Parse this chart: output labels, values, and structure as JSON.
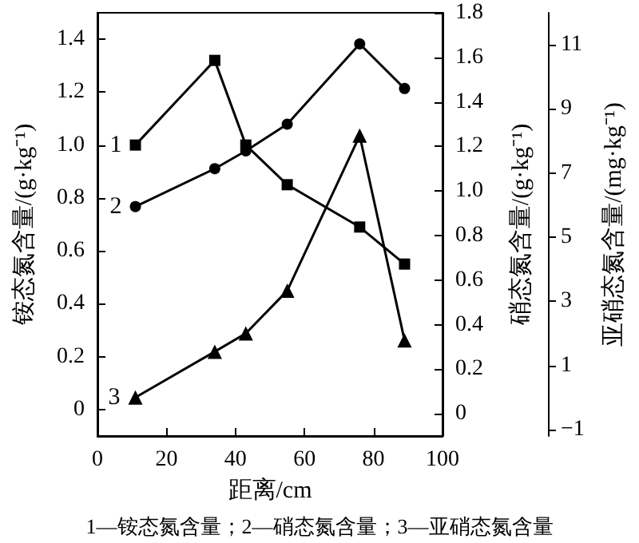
{
  "chart_data": {
    "type": "line",
    "xlabel": "距离/cm",
    "ylabel": "铵态氮含量/(g·kg⁻¹)",
    "y2label": "硝态氮含量/(g·kg⁻¹)",
    "y3label": "亚硝态氮含量/(mg·kg⁻¹)",
    "x": [
      11,
      34,
      43,
      55,
      76,
      89
    ],
    "series": [
      {
        "name": "1",
        "color": "#000000",
        "marker": "square",
        "values": [
          1.0,
          1.32,
          1.0,
          0.85,
          0.69,
          0.55
        ]
      },
      {
        "name": "2",
        "color": "#000000",
        "marker": "circle",
        "axis": "y2",
        "values": [
          0.93,
          1.1,
          1.18,
          1.3,
          1.66,
          1.46
        ]
      },
      {
        "name": "3",
        "color": "#000000",
        "marker": "triangle",
        "axis": "y3",
        "values": [
          0.0,
          1.43,
          2.0,
          3.33,
          8.17,
          1.78
        ]
      }
    ],
    "xlim": [
      0,
      100
    ],
    "xticks": [
      0,
      20,
      40,
      60,
      80,
      100
    ],
    "ylim": [
      -0.1,
      1.5
    ],
    "yticks": [
      0,
      0.2,
      0.4,
      0.6,
      0.8,
      {
        "value": 1,
        "label": "1.0"
      },
      1.2,
      1.4
    ],
    "y2lim": [
      -0.1,
      1.8
    ],
    "y2ticks": [
      0,
      0.2,
      0.4,
      0.6,
      0.8,
      {
        "value": 1,
        "label": "1.0"
      },
      1.2,
      1.4,
      1.6,
      1.8
    ],
    "y3lim": [
      -1.2,
      12
    ],
    "y3ticks": [
      {
        "value": -1,
        "label": "−1"
      },
      1,
      3,
      5,
      7,
      9,
      11
    ],
    "grid": false,
    "annotations": [
      "1—铵态氮含量；2—硝态氮含量；3—亚硝态氮含量"
    ]
  }
}
